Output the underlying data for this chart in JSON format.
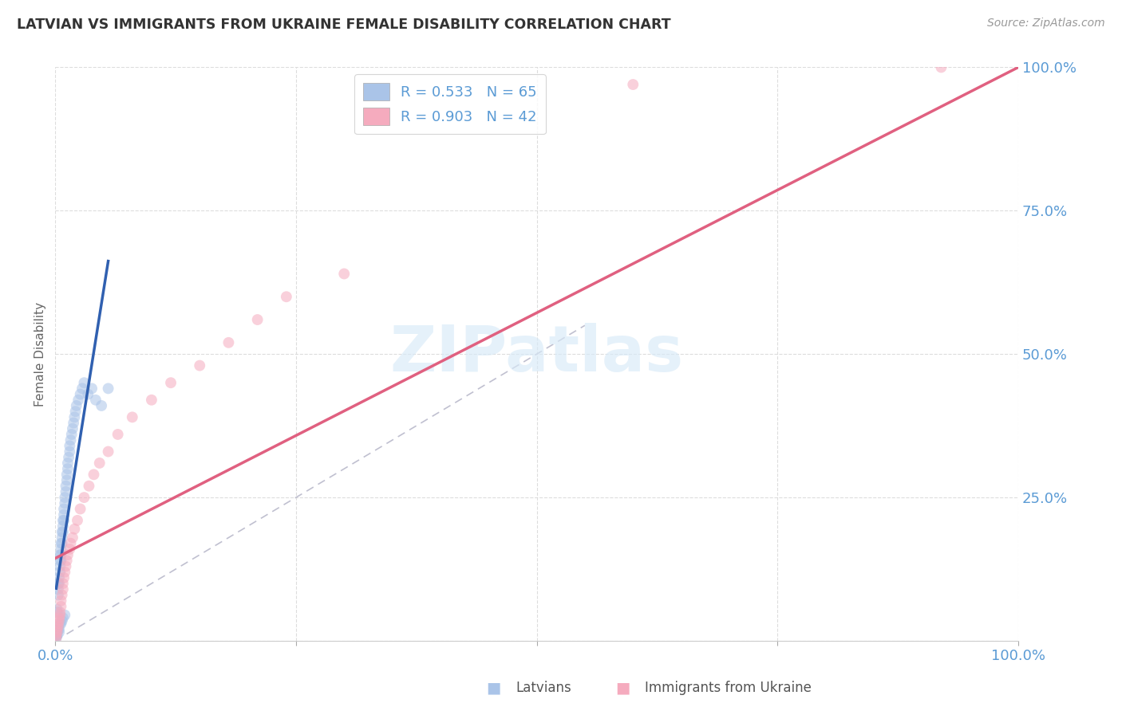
{
  "title": "LATVIAN VS IMMIGRANTS FROM UKRAINE FEMALE DISABILITY CORRELATION CHART",
  "source": "Source: ZipAtlas.com",
  "ylabel": "Female Disability",
  "background_color": "#ffffff",
  "grid_color": "#dddddd",
  "watermark_text": "ZIPatlas",
  "legend_latvians_label": "R = 0.533   N = 65",
  "legend_ukraine_label": "R = 0.903   N = 42",
  "latvians_color": "#aac4e8",
  "ukraine_color": "#f5abbe",
  "latvians_line_color": "#3060b0",
  "ukraine_line_color": "#e06080",
  "diagonal_color": "#c0c0d0",
  "tick_color": "#5b9bd5",
  "ylabel_color": "#666666",
  "title_color": "#333333",
  "source_color": "#999999",
  "xlim": [
    0.0,
    1.0
  ],
  "ylim": [
    0.0,
    1.0
  ],
  "scatter_size": 100,
  "scatter_alpha": 0.55,
  "lv_x": [
    0.001,
    0.001,
    0.001,
    0.002,
    0.002,
    0.002,
    0.002,
    0.003,
    0.003,
    0.003,
    0.003,
    0.003,
    0.004,
    0.004,
    0.004,
    0.004,
    0.005,
    0.005,
    0.005,
    0.005,
    0.005,
    0.006,
    0.006,
    0.006,
    0.006,
    0.006,
    0.007,
    0.007,
    0.007,
    0.007,
    0.008,
    0.008,
    0.008,
    0.008,
    0.009,
    0.009,
    0.009,
    0.01,
    0.01,
    0.01,
    0.011,
    0.011,
    0.012,
    0.012,
    0.013,
    0.013,
    0.014,
    0.015,
    0.015,
    0.016,
    0.017,
    0.018,
    0.019,
    0.02,
    0.021,
    0.022,
    0.024,
    0.026,
    0.028,
    0.03,
    0.034,
    0.038,
    0.042,
    0.048,
    0.055
  ],
  "lv_y": [
    0.005,
    0.008,
    0.012,
    0.05,
    0.055,
    0.01,
    0.015,
    0.08,
    0.09,
    0.1,
    0.02,
    0.025,
    0.1,
    0.11,
    0.015,
    0.02,
    0.13,
    0.14,
    0.15,
    0.12,
    0.03,
    0.16,
    0.17,
    0.14,
    0.15,
    0.03,
    0.18,
    0.19,
    0.17,
    0.035,
    0.2,
    0.21,
    0.19,
    0.04,
    0.22,
    0.23,
    0.21,
    0.24,
    0.25,
    0.045,
    0.26,
    0.27,
    0.28,
    0.29,
    0.3,
    0.31,
    0.32,
    0.33,
    0.34,
    0.35,
    0.36,
    0.37,
    0.38,
    0.39,
    0.4,
    0.41,
    0.42,
    0.43,
    0.44,
    0.45,
    0.43,
    0.44,
    0.42,
    0.41,
    0.44
  ],
  "uk_x": [
    0.001,
    0.001,
    0.002,
    0.002,
    0.003,
    0.003,
    0.004,
    0.004,
    0.005,
    0.005,
    0.006,
    0.006,
    0.007,
    0.008,
    0.008,
    0.009,
    0.01,
    0.011,
    0.012,
    0.013,
    0.015,
    0.016,
    0.018,
    0.02,
    0.023,
    0.026,
    0.03,
    0.035,
    0.04,
    0.046,
    0.055,
    0.065,
    0.08,
    0.1,
    0.12,
    0.15,
    0.18,
    0.21,
    0.24,
    0.3,
    0.6,
    0.92
  ],
  "uk_y": [
    0.005,
    0.01,
    0.015,
    0.02,
    0.025,
    0.03,
    0.035,
    0.04,
    0.045,
    0.05,
    0.06,
    0.07,
    0.08,
    0.09,
    0.1,
    0.11,
    0.12,
    0.13,
    0.14,
    0.15,
    0.16,
    0.17,
    0.18,
    0.195,
    0.21,
    0.23,
    0.25,
    0.27,
    0.29,
    0.31,
    0.33,
    0.36,
    0.39,
    0.42,
    0.45,
    0.48,
    0.52,
    0.56,
    0.6,
    0.64,
    0.97,
    1.0
  ]
}
